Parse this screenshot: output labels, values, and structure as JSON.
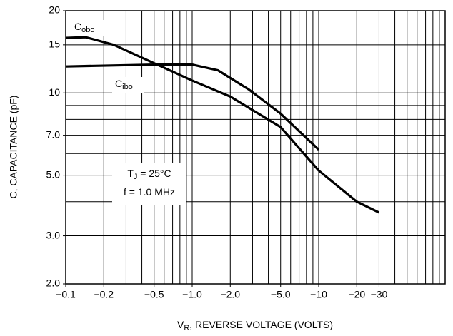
{
  "chart_data": {
    "type": "line",
    "ylabel": "C, CAPACITANCE (pF)",
    "xlabel": {
      "main": "V",
      "sub": "R",
      "rest": ", REVERSE VOLTAGE (VOLTS)"
    },
    "log_x": true,
    "log_y": true,
    "grid": true,
    "xlim": [
      -0.1,
      -100
    ],
    "ylim": [
      2,
      20
    ],
    "xticks": [
      {
        "value": -0.1,
        "label": "−0.1"
      },
      {
        "value": -0.2,
        "label": "−0.2"
      },
      {
        "value": -0.5,
        "label": "−0.5"
      },
      {
        "value": -1.0,
        "label": "−1.0"
      },
      {
        "value": -2.0,
        "label": "−2.0"
      },
      {
        "value": -5.0,
        "label": "−5.0"
      },
      {
        "value": -10,
        "label": "−10"
      },
      {
        "value": -20,
        "label": "−20"
      },
      {
        "value": -30,
        "label": "−30"
      }
    ],
    "yticks": [
      {
        "value": 2.0,
        "label": "2.0"
      },
      {
        "value": 3.0,
        "label": "3.0"
      },
      {
        "value": 5.0,
        "label": "5.0"
      },
      {
        "value": 7.0,
        "label": "7.0"
      },
      10,
      15,
      20
    ],
    "xgrid": [
      -0.1,
      -0.2,
      -0.3,
      -0.4,
      -0.5,
      -0.6,
      -0.7,
      -0.8,
      -0.9,
      -1,
      -2,
      -3,
      -4,
      -5,
      -6,
      -7,
      -8,
      -9,
      -10,
      -20,
      -30,
      -40,
      -50,
      -60,
      -70,
      -80,
      -90,
      -100
    ],
    "ygrid": [
      2,
      3,
      4,
      5,
      6,
      7,
      8,
      9,
      10,
      15,
      20
    ],
    "series": [
      {
        "name": "C",
        "name_sub": "obo",
        "color": "#000000",
        "x": [
          -0.1,
          -0.144,
          -0.24,
          -0.49,
          -1.0,
          -2.0,
          -5.0,
          -10,
          -20,
          -30
        ],
        "values": [
          15.9,
          16.0,
          15.0,
          12.9,
          11.1,
          9.7,
          7.5,
          5.2,
          4.0,
          3.65
        ]
      },
      {
        "name": "C",
        "name_sub": "ibo",
        "color": "#000000",
        "x": [
          -0.1,
          -0.5,
          -1.0,
          -1.6,
          -2.8,
          -5.0,
          -10
        ],
        "values": [
          12.5,
          12.7,
          12.7,
          12.1,
          10.3,
          8.4,
          6.2
        ]
      }
    ],
    "annotations": [
      {
        "main": "T",
        "sub": "J",
        "rest": " = 25°C"
      },
      {
        "main": "f = 1.0 MHz"
      }
    ]
  }
}
